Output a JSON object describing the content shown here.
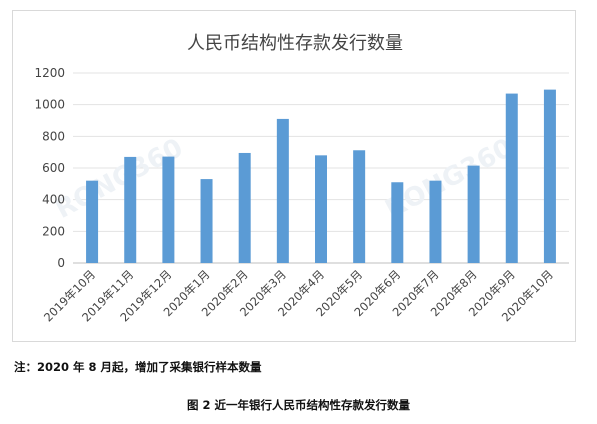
{
  "chart_data": {
    "type": "bar",
    "title": "人民币结构性存款发行数量",
    "categories": [
      "2019年10月",
      "2019年11月",
      "2019年12月",
      "2020年1月",
      "2020年2月",
      "2020年3月",
      "2020年4月",
      "2020年5月",
      "2020年6月",
      "2020年7月",
      "2020年8月",
      "2020年9月",
      "2020年10月"
    ],
    "values": [
      520,
      670,
      672,
      530,
      695,
      910,
      680,
      712,
      510,
      520,
      615,
      1070,
      1095
    ],
    "ylim": [
      0,
      1200
    ],
    "yticks": [
      "0",
      "200",
      "400",
      "600",
      "800",
      "1000",
      "1200"
    ],
    "grid": true,
    "legend": "none",
    "bar_color": "#5b9bd5",
    "watermark": "RONG360"
  },
  "footnote": "注：2020 年 8 月起，增加了采集银行样本数量",
  "figure_caption": "图 2  近一年银行人民币结构性存款发行数量"
}
